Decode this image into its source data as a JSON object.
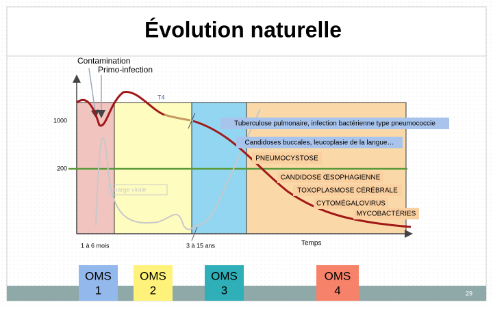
{
  "header": {
    "title": "Évolution naturelle"
  },
  "phases": {
    "contamination": "Contamination",
    "primo_infection": "Primo-infection"
  },
  "axis": {
    "t4": "T4",
    "level_high": "1000",
    "level_low": "200",
    "time": "Temps",
    "period_1": "1 à 6 mois",
    "period_2": "3 à 15 ans",
    "viral_load": "charge virale"
  },
  "events": [
    "Tuberculose pulmonaire, infection bactérienne type pneumococcie",
    "Candidoses buccales, leucoplasie de la langue…",
    "PNEUMOCYSTOSE",
    "CANDIDOSE ŒSOPHAGIENNE",
    "TOXOPLASMOSE CÉRÉBRALE",
    "CYTOMÉGALOVIRUS",
    "MYCOBACTÉRIES"
  ],
  "stages": [
    {
      "label": "OMS",
      "number": "1"
    },
    {
      "label": "OMS",
      "number": "2"
    },
    {
      "label": "OMS",
      "number": "3"
    },
    {
      "label": "OMS",
      "number": "4"
    }
  ],
  "footer": {
    "page": "29"
  }
}
